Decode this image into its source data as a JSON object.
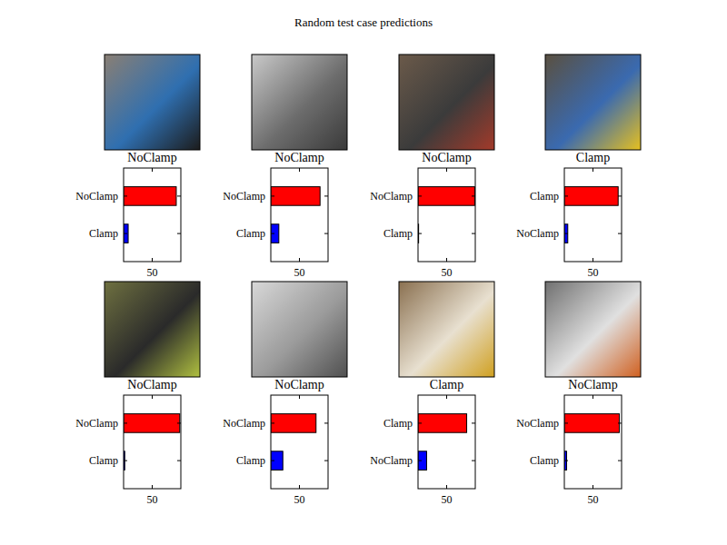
{
  "title": "Random test case predictions",
  "chart_data": [
    {
      "type": "bar",
      "orientation": "horizontal",
      "title": "NoClamp",
      "categories": [
        "NoClamp",
        "Clamp"
      ],
      "values": [
        92,
        8
      ],
      "colors": [
        "#ff0000",
        "#0000ff"
      ],
      "xlim": [
        0,
        100
      ],
      "xticks": [
        50
      ]
    },
    {
      "type": "bar",
      "orientation": "horizontal",
      "title": "NoClamp",
      "categories": [
        "NoClamp",
        "Clamp"
      ],
      "values": [
        86,
        14
      ],
      "colors": [
        "#ff0000",
        "#0000ff"
      ],
      "xlim": [
        0,
        100
      ],
      "xticks": [
        50
      ]
    },
    {
      "type": "bar",
      "orientation": "horizontal",
      "title": "NoClamp",
      "categories": [
        "NoClamp",
        "Clamp"
      ],
      "values": [
        99,
        1
      ],
      "colors": [
        "#ff0000",
        "#0000ff"
      ],
      "xlim": [
        0,
        100
      ],
      "xticks": [
        50
      ]
    },
    {
      "type": "bar",
      "orientation": "horizontal",
      "title": "Clamp",
      "categories": [
        "Clamp",
        "NoClamp"
      ],
      "values": [
        94,
        6
      ],
      "colors": [
        "#ff0000",
        "#0000ff"
      ],
      "xlim": [
        0,
        100
      ],
      "xticks": [
        50
      ]
    },
    {
      "type": "bar",
      "orientation": "horizontal",
      "title": "NoClamp",
      "categories": [
        "NoClamp",
        "Clamp"
      ],
      "values": [
        98,
        2
      ],
      "colors": [
        "#ff0000",
        "#0000ff"
      ],
      "xlim": [
        0,
        100
      ],
      "xticks": [
        50
      ]
    },
    {
      "type": "bar",
      "orientation": "horizontal",
      "title": "NoClamp",
      "categories": [
        "NoClamp",
        "Clamp"
      ],
      "values": [
        79,
        21
      ],
      "colors": [
        "#ff0000",
        "#0000ff"
      ],
      "xlim": [
        0,
        100
      ],
      "xticks": [
        50
      ]
    },
    {
      "type": "bar",
      "orientation": "horizontal",
      "title": "Clamp",
      "categories": [
        "Clamp",
        "NoClamp"
      ],
      "values": [
        85,
        15
      ],
      "colors": [
        "#ff0000",
        "#0000ff"
      ],
      "xlim": [
        0,
        100
      ],
      "xticks": [
        50
      ]
    },
    {
      "type": "bar",
      "orientation": "horizontal",
      "title": "NoClamp",
      "categories": [
        "NoClamp",
        "Clamp"
      ],
      "values": [
        96,
        4
      ],
      "colors": [
        "#ff0000",
        "#0000ff"
      ],
      "xlim": [
        0,
        100
      ],
      "xticks": [
        50
      ]
    }
  ]
}
